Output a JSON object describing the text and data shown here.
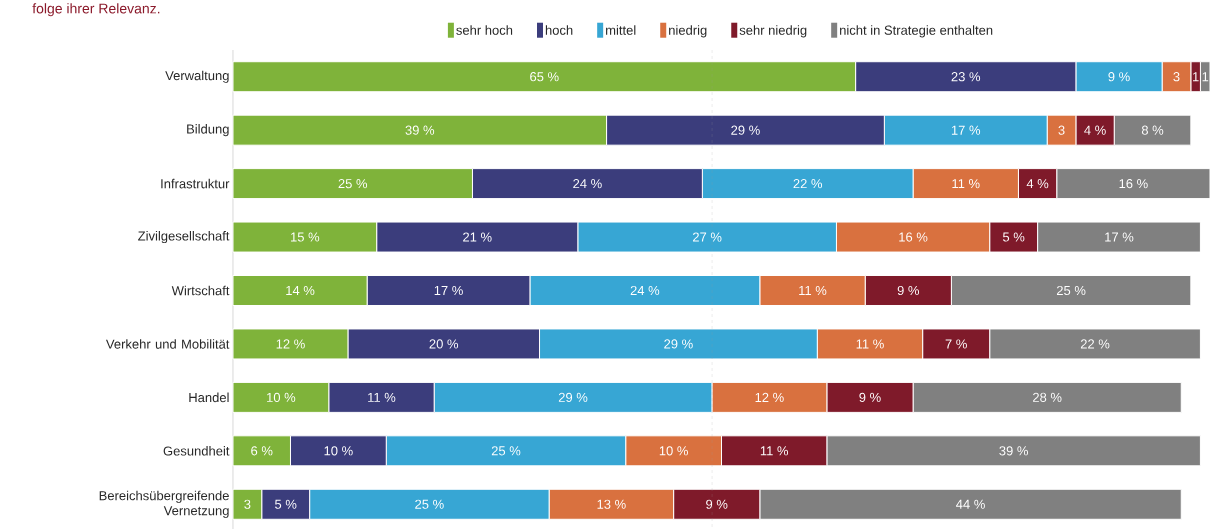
{
  "chart_data": {
    "type": "bar",
    "orientation": "horizontal",
    "stacked": true,
    "title": "folge ihrer Relevanz.",
    "categories": [
      "Verwaltung",
      "Bildung",
      "Infrastruktur",
      "Zivilgesellschaft",
      "Wirtschaft",
      "Verkehr und Mobilität",
      "Handel",
      "Gesundheit",
      "Bereichsübergreifende Vernetzung"
    ],
    "series": [
      {
        "name": "sehr hoch",
        "color": "#7fb33a",
        "values": [
          65,
          39,
          25,
          15,
          14,
          12,
          10,
          6,
          3
        ],
        "value_labels": [
          "65 %",
          "39 %",
          "25 %",
          "15 %",
          "14 %",
          "12 %",
          "10 %",
          "6 %",
          "3"
        ]
      },
      {
        "name": "hoch",
        "color": "#3b3d7c",
        "values": [
          23,
          29,
          24,
          21,
          17,
          20,
          11,
          10,
          5
        ],
        "value_labels": [
          "23 %",
          "29 %",
          "24 %",
          "21 %",
          "17 %",
          "20 %",
          "11 %",
          "10 %",
          "5 %"
        ]
      },
      {
        "name": "mittel",
        "color": "#37a6d4",
        "values": [
          9,
          17,
          22,
          27,
          24,
          29,
          29,
          25,
          25
        ],
        "value_labels": [
          "9 %",
          "17 %",
          "22 %",
          "27 %",
          "24 %",
          "29 %",
          "29 %",
          "25 %",
          "25 %"
        ]
      },
      {
        "name": "niedrig",
        "color": "#d9713f",
        "values": [
          3,
          3,
          11,
          16,
          11,
          11,
          12,
          10,
          13
        ],
        "value_labels": [
          "3",
          "3",
          "11 %",
          "16 %",
          "11 %",
          "11 %",
          "12 %",
          "10 %",
          "13 %"
        ]
      },
      {
        "name": "sehr niedrig",
        "color": "#7f1a2a",
        "values": [
          1,
          4,
          4,
          5,
          9,
          7,
          9,
          11,
          9
        ],
        "value_labels": [
          "1",
          "4 %",
          "4 %",
          "5 %",
          "9 %",
          "7 %",
          "9 %",
          "11 %",
          "9 %"
        ]
      },
      {
        "name": "nicht in Strategie enthalten",
        "color": "#808080",
        "values": [
          1,
          8,
          16,
          17,
          25,
          22,
          28,
          39,
          44
        ],
        "value_labels": [
          "1",
          "8 %",
          "16 %",
          "17 %",
          "25 %",
          "22 %",
          "28 %",
          "39 %",
          "44 %"
        ]
      }
    ],
    "ref_lines": [
      {
        "axis": "x",
        "value": 50,
        "line_style": "dashed",
        "color": "#999999"
      }
    ],
    "legend": "top",
    "tick_labels": "y"
  }
}
